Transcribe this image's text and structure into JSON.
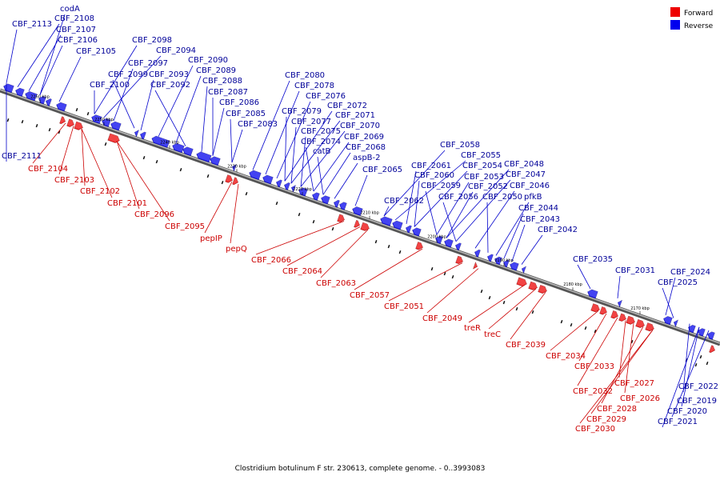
{
  "legend": {
    "forward": {
      "label": "Forward",
      "color": "#ee0000"
    },
    "reverse": {
      "label": "Reverse",
      "color": "#0000ee"
    }
  },
  "caption": "Clostridium botulinum F str. 230613, complete genome. - 0..3993083",
  "genome_ticks": [
    "2260 kbp",
    "2250 kbp",
    "2240 kbp",
    "2230 kbp",
    "2220 kbp",
    "2210 kbp",
    "2200 kbp",
    "2190 kbp",
    "2180 kbp",
    "2170 kbp"
  ],
  "reverse_labels": [
    "codA",
    "CBF_2113",
    "CBF_2108",
    "CBF_2107",
    "CBF_2106",
    "CBF_2105",
    "CBF_2098",
    "CBF_2094",
    "CBF_2097",
    "CBF_2099",
    "CBF_2093",
    "CBF_2090",
    "CBF_2089",
    "CBF_2100",
    "CBF_2092",
    "CBF_2088",
    "CBF_2087",
    "CBF_2086",
    "CBF_2085",
    "CBF_2083",
    "CBF_2080",
    "CBF_2078",
    "CBF_2076",
    "CBF_2072",
    "CBF_2079",
    "CBF_2071",
    "CBF_2077",
    "CBF_2070",
    "CBF_2075",
    "CBF_2069",
    "CBF_2074",
    "CBF_2068",
    "catB",
    "aspB-2",
    "CBF_2065",
    "CBF_2058",
    "CBF_2055",
    "CBF_2061",
    "CBF_2054",
    "CBF_2060",
    "CBF_2053",
    "CBF_2048",
    "CBF_2059",
    "CBF_2052",
    "CBF_2047",
    "CBF_2046",
    "CBF_2056",
    "CBF_2050",
    "pfkB",
    "CBF_2062",
    "CBF_2044",
    "CBF_2043",
    "CBF_2042",
    "CBF_2035",
    "CBF_2031",
    "CBF_2024",
    "CBF_2025",
    "CBF_2111",
    "CBF_2022",
    "CBF_2019",
    "CBF_2020",
    "CBF_2021"
  ],
  "forward_labels": [
    "CBF_2104",
    "CBF_2103",
    "CBF_2102",
    "CBF_2101",
    "CBF_2096",
    "CBF_2095",
    "pepIP",
    "pepQ",
    "CBF_2066",
    "CBF_2064",
    "CBF_2063",
    "CBF_2057",
    "CBF_2051",
    "CBF_2049",
    "treR",
    "treC",
    "CBF_2039",
    "CBF_2034",
    "CBF_2033",
    "CBF_2027",
    "CBF_2032",
    "CBF_2026",
    "CBF_2028",
    "CBF_2029",
    "CBF_2030"
  ]
}
